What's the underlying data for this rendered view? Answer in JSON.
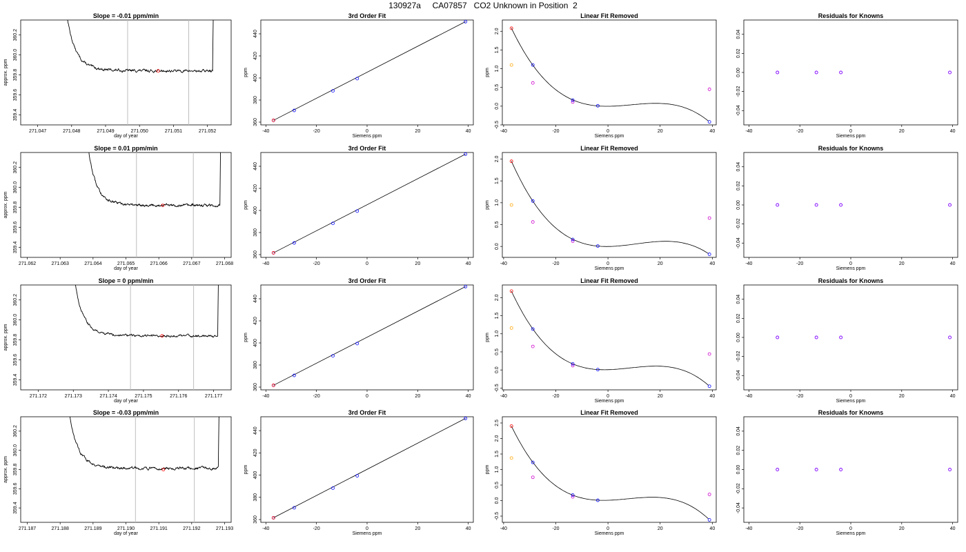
{
  "title": "130927a     CA07857   CO2 Unknown in Position  2",
  "colors": {
    "curve": "#000000",
    "vline": "#bebebe",
    "red": "#ff0000",
    "blue": "#0000ff",
    "orange": "#ffa500",
    "magenta": "#cc00cc",
    "purple": "#7f00ff"
  },
  "chart_data": [
    {
      "row": 1,
      "panels": [
        {
          "type": "line",
          "title": "Slope =  -0.01  ppm/min",
          "xlabel": "day of year",
          "ylabel": "approx. ppm",
          "xlim": [
            271.0465,
            271.0527
          ],
          "ylim": [
            359.3,
            360.35
          ],
          "xticks": [
            "271.047",
            "271.048",
            "271.049",
            "271.050",
            "271.051",
            "271.052"
          ],
          "yticks": [
            "359.4",
            "359.6",
            "359.8",
            "360.0",
            "360.2"
          ],
          "t_start": 271.04775,
          "t_end": 271.05222,
          "plateau": 359.84,
          "noise": 0.015,
          "vlines": [
            271.04965,
            271.05145
          ],
          "marker": {
            "x": 271.05055,
            "y": 359.84
          }
        },
        {
          "type": "line",
          "title": "3rd Order Fit",
          "xlabel": "Siemens ppm",
          "ylabel": "ppm",
          "xlim": [
            -42,
            42
          ],
          "ylim": [
            357.5,
            452.5
          ],
          "xticks": [
            "-40",
            "-20",
            "0",
            "20",
            "40"
          ],
          "yticks": [
            "360",
            "380",
            "400",
            "420",
            "440"
          ],
          "points_red": [
            [
              -37,
              361.6
            ]
          ],
          "points_blue": [
            [
              -37,
              361.6
            ],
            [
              -28.8,
              370.6
            ],
            [
              -13.5,
              388.3
            ],
            [
              -3.9,
              399.4
            ],
            [
              38.9,
              451.0
            ]
          ]
        },
        {
          "type": "scatter",
          "title": "Linear Fit Removed",
          "xlabel": "Siemens ppm",
          "ylabel": "ppm",
          "xlim": [
            -40.5,
            41.5
          ],
          "ylim": [
            -0.5,
            2.3
          ],
          "xticks": [
            "-40",
            "-20",
            "0",
            "20",
            "40"
          ],
          "yticks": [
            "-0.5",
            "0.0",
            "0.5",
            "1.0",
            "1.5",
            "2.0"
          ],
          "curve_x": [
            -37,
            -28.8,
            -13.5,
            -3.9,
            38.9
          ],
          "curve_y": [
            2.08,
            1.1,
            0.16,
            0.01,
            -0.42
          ],
          "red": [
            [
              -37,
              2.08
            ]
          ],
          "orange": [
            [
              -37,
              1.1
            ]
          ],
          "magenta": [
            [
              -28.8,
              0.62
            ],
            [
              -13.5,
              0.11
            ],
            [
              38.9,
              0.45
            ]
          ],
          "blue": [
            [
              -28.8,
              1.1
            ],
            [
              -13.5,
              0.16
            ],
            [
              -3.9,
              0.01
            ],
            [
              38.9,
              -0.42
            ]
          ]
        },
        {
          "type": "scatter",
          "title": "Residuals for Knowns",
          "xlabel": "Siemens ppm",
          "ylabel": "",
          "xlim": [
            -42,
            42
          ],
          "ylim": [
            -0.055,
            0.055
          ],
          "xticks": [
            "-40",
            "-20",
            "0",
            "20",
            "40"
          ],
          "yticks": [
            "-0.04",
            "-0.02",
            "0.00",
            "0.02",
            "0.04"
          ],
          "points": [
            [
              -28.8,
              0
            ],
            [
              -13.5,
              0
            ],
            [
              -3.9,
              0
            ],
            [
              38.9,
              0
            ]
          ]
        }
      ]
    },
    {
      "row": 2,
      "panels": [
        {
          "type": "line",
          "title": "Slope =  0.01  ppm/min",
          "xlabel": "day of year",
          "ylabel": "approx. ppm",
          "xlim": [
            271.0618,
            271.0682
          ],
          "ylim": [
            359.3,
            360.35
          ],
          "xticks": [
            "271.062",
            "271.063",
            "271.064",
            "271.065",
            "271.066",
            "271.067",
            "271.068"
          ],
          "yticks": [
            "359.4",
            "359.6",
            "359.8",
            "360.0",
            "360.2"
          ],
          "t_start": 271.06376,
          "t_end": 271.06792,
          "plateau": 359.82,
          "noise": 0.015,
          "vlines": [
            271.06532,
            271.06705
          ],
          "marker": {
            "x": 271.06612,
            "y": 359.82
          }
        },
        {
          "type": "line",
          "title": "3rd Order Fit",
          "xlabel": "",
          "ylabel": "ppm",
          "xlim": [
            -42,
            42
          ],
          "ylim": [
            357.5,
            452.5
          ],
          "xticks": [
            "-40",
            "-20",
            "0",
            "20",
            "40"
          ],
          "yticks": [
            "360",
            "380",
            "400",
            "420",
            "440"
          ],
          "points_red": [
            [
              -37,
              361.6
            ]
          ],
          "points_blue": [
            [
              -37,
              361.6
            ],
            [
              -28.8,
              370.6
            ],
            [
              -13.5,
              388.3
            ],
            [
              -3.9,
              399.4
            ],
            [
              38.9,
              451.0
            ]
          ]
        },
        {
          "type": "scatter",
          "title": "Linear Fit Removed",
          "xlabel": "Siemens ppm",
          "ylabel": "ppm",
          "xlim": [
            -40.5,
            41.5
          ],
          "ylim": [
            -0.25,
            2.15
          ],
          "xticks": [
            "-40",
            "-20",
            "0",
            "20",
            "40"
          ],
          "yticks": [
            "0.0",
            "0.5",
            "1.0",
            "1.5",
            "2.0"
          ],
          "curve_x": [
            -37,
            -28.8,
            -13.5,
            -3.9,
            38.9
          ],
          "curve_y": [
            1.95,
            1.04,
            0.16,
            0.01,
            -0.18
          ],
          "red": [
            [
              -37,
              1.95
            ]
          ],
          "orange": [
            [
              -37,
              0.95
            ]
          ],
          "magenta": [
            [
              -28.8,
              0.56
            ],
            [
              -13.5,
              0.12
            ],
            [
              38.9,
              0.65
            ]
          ],
          "blue": [
            [
              -28.8,
              1.04
            ],
            [
              -13.5,
              0.16
            ],
            [
              -3.9,
              0.01
            ],
            [
              38.9,
              -0.18
            ]
          ]
        },
        {
          "type": "scatter",
          "title": "Residuals for Knowns",
          "xlabel": "Siemens ppm",
          "ylabel": "",
          "xlim": [
            -42,
            42
          ],
          "ylim": [
            -0.055,
            0.055
          ],
          "xticks": [
            "-40",
            "-20",
            "0",
            "20",
            "40"
          ],
          "yticks": [
            "-0.04",
            "-0.02",
            "0.00",
            "0.02",
            "0.04"
          ],
          "points": [
            [
              -28.8,
              0
            ],
            [
              -13.5,
              0
            ],
            [
              -3.9,
              0
            ],
            [
              38.9,
              0
            ]
          ]
        }
      ]
    },
    {
      "row": 3,
      "panels": [
        {
          "type": "line",
          "title": "Slope =  0  ppm/min",
          "xlabel": "day of year",
          "ylabel": "approx. ppm",
          "xlim": [
            271.1715,
            271.1775
          ],
          "ylim": [
            359.3,
            360.35
          ],
          "xticks": [
            "271.172",
            "271.173",
            "271.174",
            "271.175",
            "271.176",
            "271.177"
          ],
          "yticks": [
            "359.4",
            "359.6",
            "359.8",
            "360.0",
            "360.2"
          ],
          "t_start": 271.17293,
          "t_end": 271.17718,
          "plateau": 359.84,
          "noise": 0.013,
          "vlines": [
            271.17463,
            271.17643
          ],
          "marker": {
            "x": 271.17553,
            "y": 359.84
          }
        },
        {
          "type": "line",
          "title": "3rd Order Fit",
          "xlabel": "",
          "ylabel": "ppm",
          "xlim": [
            -42,
            42
          ],
          "ylim": [
            357.5,
            452.5
          ],
          "xticks": [
            "-40",
            "-20",
            "0",
            "20",
            "40"
          ],
          "yticks": [
            "360",
            "380",
            "400",
            "420",
            "440"
          ],
          "points_red": [
            [
              -37,
              361.6
            ]
          ],
          "points_blue": [
            [
              -37,
              361.6
            ],
            [
              -28.8,
              370.6
            ],
            [
              -13.5,
              388.3
            ],
            [
              -3.9,
              399.4
            ],
            [
              38.9,
              451.0
            ]
          ]
        },
        {
          "type": "scatter",
          "title": "Linear Fit Removed",
          "xlabel": "Siemens ppm",
          "ylabel": "ppm",
          "xlim": [
            -40.5,
            41.5
          ],
          "ylim": [
            -0.55,
            2.35
          ],
          "xticks": [
            "-40",
            "-20",
            "0",
            "20",
            "40"
          ],
          "yticks": [
            "-0.5",
            "0.0",
            "0.5",
            "1.0",
            "1.5",
            "2.0"
          ],
          "curve_x": [
            -37,
            -28.8,
            -13.5,
            -3.9,
            38.9
          ],
          "curve_y": [
            2.18,
            1.13,
            0.17,
            0.01,
            -0.45
          ],
          "red": [
            [
              -37,
              2.18
            ]
          ],
          "orange": [
            [
              -37,
              1.16
            ]
          ],
          "magenta": [
            [
              -28.8,
              0.65
            ],
            [
              -13.5,
              0.12
            ],
            [
              38.9,
              0.44
            ]
          ],
          "blue": [
            [
              -28.8,
              1.13
            ],
            [
              -13.5,
              0.17
            ],
            [
              -3.9,
              0.01
            ],
            [
              38.9,
              -0.45
            ]
          ]
        },
        {
          "type": "scatter",
          "title": "Residuals for Knowns",
          "xlabel": "Siemens ppm",
          "ylabel": "",
          "xlim": [
            -42,
            42
          ],
          "ylim": [
            -0.055,
            0.055
          ],
          "xticks": [
            "-40",
            "-20",
            "0",
            "20",
            "40"
          ],
          "yticks": [
            "-0.04",
            "-0.02",
            "0.00",
            "0.02",
            "0.04"
          ],
          "points": [
            [
              -28.8,
              0
            ],
            [
              -13.5,
              0
            ],
            [
              -3.9,
              0
            ],
            [
              38.9,
              0
            ]
          ]
        }
      ]
    },
    {
      "row": 4,
      "panels": [
        {
          "type": "line",
          "title": "Slope =  -0.03  ppm/min",
          "xlabel": "day of year",
          "ylabel": "approx. ppm",
          "xlim": [
            271.1868,
            271.1932
          ],
          "ylim": [
            359.25,
            360.35
          ],
          "xticks": [
            "271.187",
            "271.188",
            "271.189",
            "271.190",
            "271.191",
            "271.192",
            "271.193"
          ],
          "yticks": [
            "359.4",
            "359.6",
            "359.8",
            "360.0",
            "360.2"
          ],
          "t_start": 271.18817,
          "t_end": 271.19288,
          "plateau": 359.81,
          "noise": 0.016,
          "vlines": [
            271.19029,
            271.19208
          ],
          "marker": {
            "x": 271.19114,
            "y": 359.8
          }
        },
        {
          "type": "line",
          "title": "3rd Order Fit",
          "xlabel": "Siemens ppm",
          "ylabel": "ppm",
          "xlim": [
            -42,
            42
          ],
          "ylim": [
            357.5,
            452.5
          ],
          "xticks": [
            "-40",
            "-20",
            "0",
            "20",
            "40"
          ],
          "yticks": [
            "360",
            "380",
            "400",
            "420",
            "440"
          ],
          "points_red": [
            [
              -37,
              361.6
            ]
          ],
          "points_blue": [
            [
              -37,
              361.6
            ],
            [
              -28.8,
              370.6
            ],
            [
              -13.5,
              388.3
            ],
            [
              -3.9,
              399.4
            ],
            [
              38.9,
              451.0
            ]
          ]
        },
        {
          "type": "scatter",
          "title": "Linear Fit Removed",
          "xlabel": "Siemens ppm",
          "ylabel": "ppm",
          "xlim": [
            -40.5,
            41.5
          ],
          "ylim": [
            -0.7,
            2.7
          ],
          "xticks": [
            "-40",
            "-20",
            "0",
            "20",
            "40"
          ],
          "yticks": [
            "-0.5",
            "0.0",
            "0.5",
            "1.0",
            "1.5",
            "2.0",
            "2.5"
          ],
          "curve_x": [
            -37,
            -28.8,
            -13.5,
            -3.9,
            38.9
          ],
          "curve_y": [
            2.4,
            1.23,
            0.18,
            0.01,
            -0.62
          ],
          "red": [
            [
              -37,
              2.4
            ]
          ],
          "orange": [
            [
              -37,
              1.37
            ]
          ],
          "magenta": [
            [
              -28.8,
              0.75
            ],
            [
              -13.5,
              0.12
            ],
            [
              38.9,
              0.2
            ]
          ],
          "blue": [
            [
              -28.8,
              1.23
            ],
            [
              -13.5,
              0.18
            ],
            [
              -3.9,
              0.01
            ],
            [
              38.9,
              -0.62
            ]
          ]
        },
        {
          "type": "scatter",
          "title": "Residuals for Knowns",
          "xlabel": "Siemens ppm",
          "ylabel": "",
          "xlim": [
            -42,
            42
          ],
          "ylim": [
            -0.055,
            0.055
          ],
          "xticks": [
            "-40",
            "-20",
            "0",
            "20",
            "40"
          ],
          "yticks": [
            "-0.04",
            "-0.02",
            "0.00",
            "0.02",
            "0.04"
          ],
          "points": [
            [
              -28.8,
              0
            ],
            [
              -13.5,
              0
            ],
            [
              -3.9,
              0
            ],
            [
              38.9,
              0
            ]
          ]
        }
      ]
    }
  ]
}
